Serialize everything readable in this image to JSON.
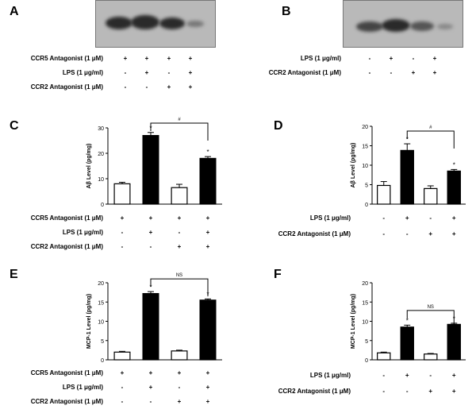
{
  "panels": {
    "A": {
      "letter": "A",
      "rows": [
        {
          "label": "CCR5 Antagonist (1 μM)",
          "signs": [
            "+",
            "+",
            "+",
            "+"
          ]
        },
        {
          "label": "LPS (1 μg/ml)",
          "signs": [
            "-",
            "+",
            "-",
            "+"
          ]
        },
        {
          "label": "CCR2 Antagonist (1 μM)",
          "signs": [
            "-",
            "-",
            "+",
            "+"
          ]
        }
      ]
    },
    "B": {
      "letter": "B",
      "rows": [
        {
          "label": "LPS (1 μg/ml)",
          "signs": [
            "-",
            "+",
            "-",
            "+"
          ]
        },
        {
          "label": "CCR2 Antagonist (1 μM)",
          "signs": [
            "-",
            "-",
            "+",
            "+"
          ]
        }
      ]
    }
  },
  "chart_data": [
    {
      "id": "C",
      "letter": "C",
      "type": "bar",
      "ylabel": "Aβ Level (pg/mg)",
      "ylim": [
        0,
        30
      ],
      "yticks": [
        0,
        10,
        20,
        30
      ],
      "values": [
        8,
        27,
        6.5,
        18
      ],
      "errors": [
        0.6,
        1.2,
        1.3,
        0.7
      ],
      "fills": [
        "#ffffff",
        "#000000",
        "#ffffff",
        "#000000"
      ],
      "stars": [
        "",
        "*",
        "",
        "*"
      ],
      "bracket": {
        "from": 1,
        "to": 3,
        "label": "#"
      },
      "rows": [
        {
          "label": "CCR5 Antagonist (1 μM)",
          "signs": [
            "+",
            "+",
            "+",
            "+"
          ]
        },
        {
          "label": "LPS (1 μg/ml)",
          "signs": [
            "-",
            "+",
            "-",
            "+"
          ]
        },
        {
          "label": "CCR2 Antagonist (1 μM)",
          "signs": [
            "-",
            "-",
            "+",
            "+"
          ]
        }
      ]
    },
    {
      "id": "D",
      "letter": "D",
      "type": "bar",
      "ylabel": "Aβ Level (pg/mg)",
      "ylim": [
        0,
        20
      ],
      "yticks": [
        0,
        5,
        10,
        15,
        20
      ],
      "values": [
        4.8,
        13.8,
        4,
        8.5
      ],
      "errors": [
        1,
        1.7,
        0.7,
        0.4
      ],
      "fills": [
        "#ffffff",
        "#000000",
        "#ffffff",
        "#000000"
      ],
      "stars": [
        "",
        "*",
        "",
        "*"
      ],
      "bracket": {
        "from": 1,
        "to": 3,
        "label": "#"
      },
      "rows": [
        {
          "label": "LPS (1 μg/ml)",
          "signs": [
            "-",
            "+",
            "-",
            "+"
          ]
        },
        {
          "label": "CCR2 Antagonist (1 μM)",
          "signs": [
            "-",
            "-",
            "+",
            "+"
          ]
        }
      ]
    },
    {
      "id": "E",
      "letter": "E",
      "type": "bar",
      "ylabel": "MCP-1 Level (pg/mg)",
      "ylim": [
        0,
        20
      ],
      "yticks": [
        0,
        5,
        10,
        15,
        20
      ],
      "values": [
        2,
        17.2,
        2.3,
        15.5
      ],
      "errors": [
        0.2,
        0.5,
        0.2,
        0.3
      ],
      "fills": [
        "#ffffff",
        "#000000",
        "#ffffff",
        "#000000"
      ],
      "stars": [
        "",
        "*",
        "",
        "*"
      ],
      "bracket": {
        "from": 1,
        "to": 3,
        "label": "NS"
      },
      "rows": [
        {
          "label": "CCR5 Antagonist (1 μM)",
          "signs": [
            "+",
            "+",
            "+",
            "+"
          ]
        },
        {
          "label": "LPS (1 μg/ml)",
          "signs": [
            "-",
            "+",
            "-",
            "+"
          ]
        },
        {
          "label": "CCR2 Antagonist (1 μM)",
          "signs": [
            "-",
            "-",
            "+",
            "+"
          ]
        }
      ]
    },
    {
      "id": "F",
      "letter": "F",
      "type": "bar",
      "ylabel": "MCP-1 Level (pg/mg)",
      "ylim": [
        0,
        20
      ],
      "yticks": [
        0,
        5,
        10,
        15,
        20
      ],
      "values": [
        1.8,
        8.5,
        1.5,
        9.2
      ],
      "errors": [
        0.2,
        0.5,
        0.15,
        0.3
      ],
      "fills": [
        "#ffffff",
        "#000000",
        "#ffffff",
        "#000000"
      ],
      "stars": [
        "",
        "*",
        "",
        "*"
      ],
      "bracket": {
        "from": 1,
        "to": 3,
        "label": "NS"
      },
      "rows": [
        {
          "label": "LPS (1 μg/ml)",
          "signs": [
            "-",
            "+",
            "-",
            "+"
          ]
        },
        {
          "label": "CCR2 Antagonist (1 μM)",
          "signs": [
            "-",
            "-",
            "+",
            "+"
          ]
        }
      ]
    }
  ]
}
